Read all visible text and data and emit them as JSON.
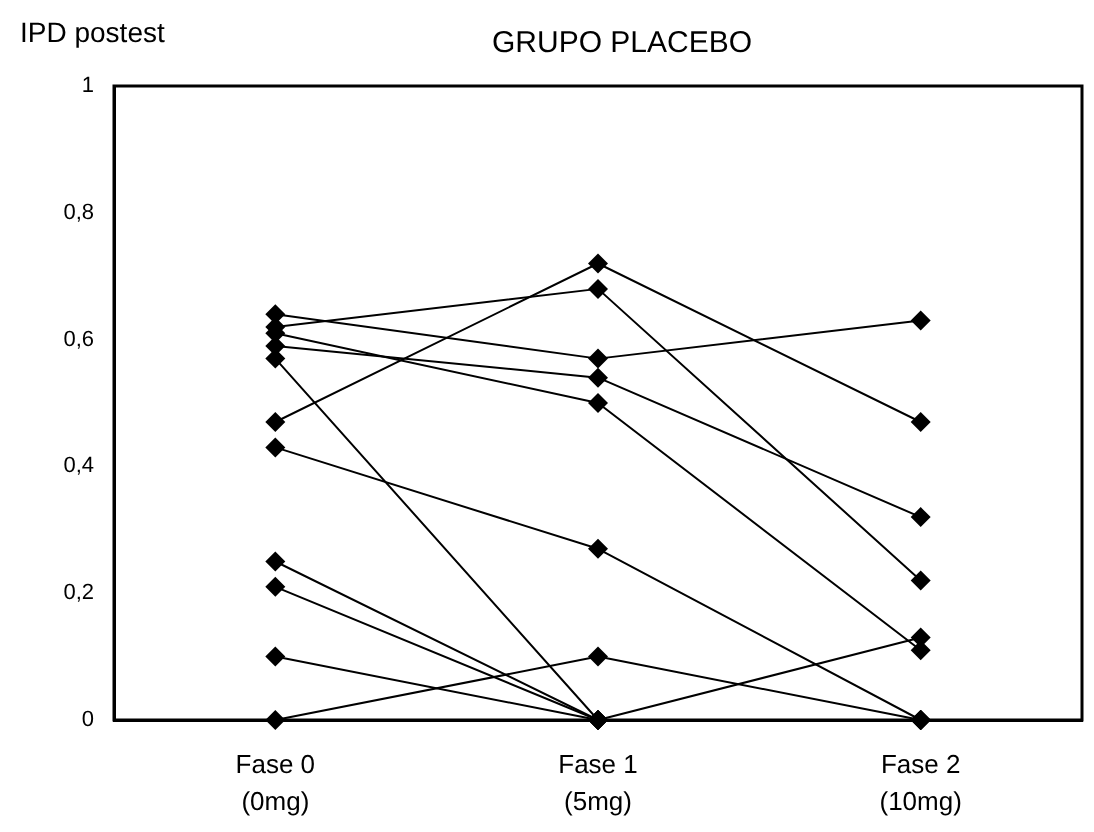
{
  "chart_data": {
    "type": "line",
    "title": "GRUPO PLACEBO",
    "ylabel": "IPD postest",
    "categories": [
      "Fase 0\n(0mg)",
      "Fase 1\n(5mg)",
      "Fase 2\n(10mg)"
    ],
    "series": [
      {
        "color": "#000000",
        "values": [
          0.64,
          0.57,
          0.63
        ]
      },
      {
        "color": "#000000",
        "values": [
          0.62,
          0.68,
          0.22
        ]
      },
      {
        "color": "#000000",
        "values": [
          0.61,
          0.5,
          0.11
        ]
      },
      {
        "color": "#000000",
        "values": [
          0.59,
          0.54,
          0.32
        ]
      },
      {
        "color": "#000000",
        "values": [
          0.57,
          0,
          0
        ]
      },
      {
        "color": "#000000",
        "values": [
          0.47,
          0.72,
          0.47
        ]
      },
      {
        "color": "#000000",
        "values": [
          0.43,
          0.27,
          0
        ]
      },
      {
        "color": "#000000",
        "values": [
          0.25,
          0,
          0.13
        ]
      },
      {
        "color": "#000000",
        "values": [
          0.21,
          0,
          0
        ]
      },
      {
        "color": "#000000",
        "values": [
          0.1,
          0,
          0
        ]
      },
      {
        "color": "#000000",
        "values": [
          0,
          0.1,
          0
        ]
      }
    ],
    "ylim": [
      0,
      1
    ],
    "yticks": [
      0,
      {
        "value": 0.2,
        "label": "0,2"
      },
      {
        "value": 0.4,
        "label": "0,4"
      },
      {
        "value": 0.6,
        "label": "0,6"
      },
      {
        "value": 0.8,
        "label": "0,8"
      },
      1
    ],
    "grid": false,
    "legend": false,
    "marker": "diamond",
    "line_style": "solid"
  }
}
